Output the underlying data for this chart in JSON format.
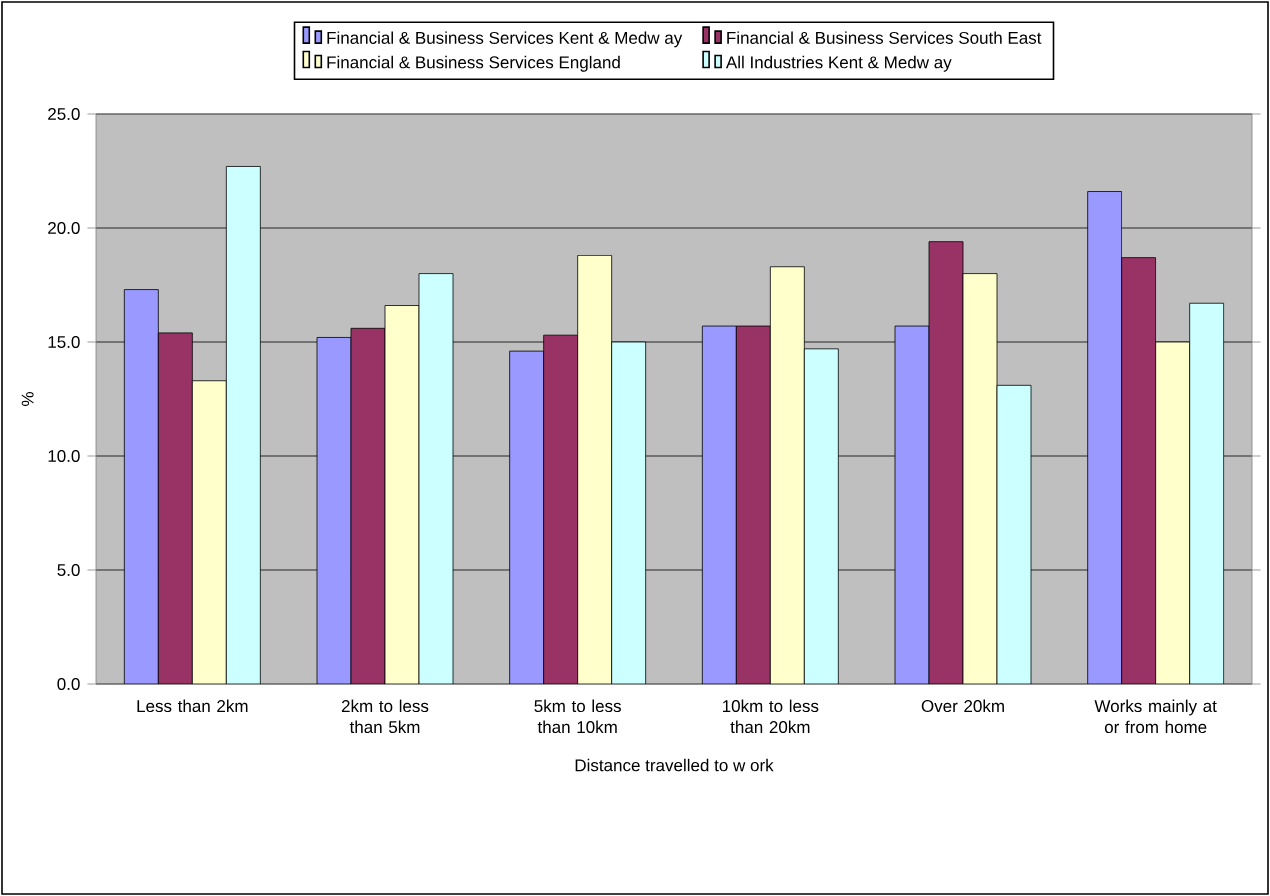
{
  "chart_data": {
    "type": "bar",
    "xlabel": "Distance travelled to w ork",
    "ylabel": "%",
    "categories": [
      "Less than 2km",
      "2km to less than 5km",
      "5km to less than 10km",
      "10km to less than 20km",
      "Over 20km",
      "Works mainly at or from home"
    ],
    "series": [
      {
        "name": "Financial & Business Services Kent & Medw ay",
        "color": "#9999ff",
        "values": [
          17.3,
          15.2,
          14.6,
          15.7,
          15.7,
          21.6
        ]
      },
      {
        "name": "Financial & Business Services South East",
        "color": "#993366",
        "values": [
          15.4,
          15.6,
          15.3,
          15.7,
          19.4,
          18.7
        ]
      },
      {
        "name": "Financial & Business Services England",
        "color": "#ffffcc",
        "values": [
          13.3,
          16.6,
          18.8,
          18.3,
          18.0,
          15.0
        ]
      },
      {
        "name": "All Industries Kent & Medw ay",
        "color": "#ccffff",
        "values": [
          22.7,
          18.0,
          15.0,
          14.7,
          13.1,
          16.7
        ]
      }
    ],
    "ylim": [
      0,
      25
    ],
    "yticks": [
      {
        "value": 0,
        "label": "0.0"
      },
      {
        "value": 5,
        "label": "5.0"
      },
      {
        "value": 10,
        "label": "10.0"
      },
      {
        "value": 15,
        "label": "15.0"
      },
      {
        "value": 20,
        "label": "20.0"
      },
      {
        "value": 25,
        "label": "25.0"
      }
    ],
    "grid": "y",
    "legend": "top"
  }
}
